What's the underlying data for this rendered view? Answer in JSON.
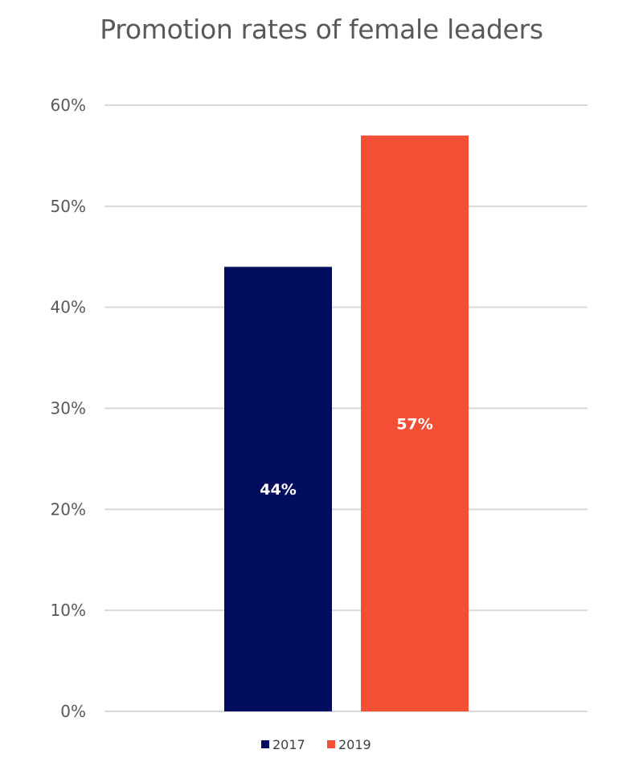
{
  "chart_data": {
    "type": "bar",
    "title": "Promotion rates of female leaders",
    "xlabel": "",
    "ylabel": "",
    "categories": [
      ""
    ],
    "series": [
      {
        "name": "2017",
        "values": [
          44
        ],
        "color": "#020d5e",
        "label": "44%"
      },
      {
        "name": "2019",
        "values": [
          57
        ],
        "color": "#f44f34",
        "label": "57%"
      }
    ],
    "ylim": [
      0,
      60
    ],
    "yticks": [
      0,
      10,
      20,
      30,
      40,
      50,
      60
    ],
    "ytick_labels": [
      "0%",
      "10%",
      "20%",
      "30%",
      "40%",
      "50%",
      "60%"
    ],
    "grid": true,
    "legend_position": "bottom"
  }
}
